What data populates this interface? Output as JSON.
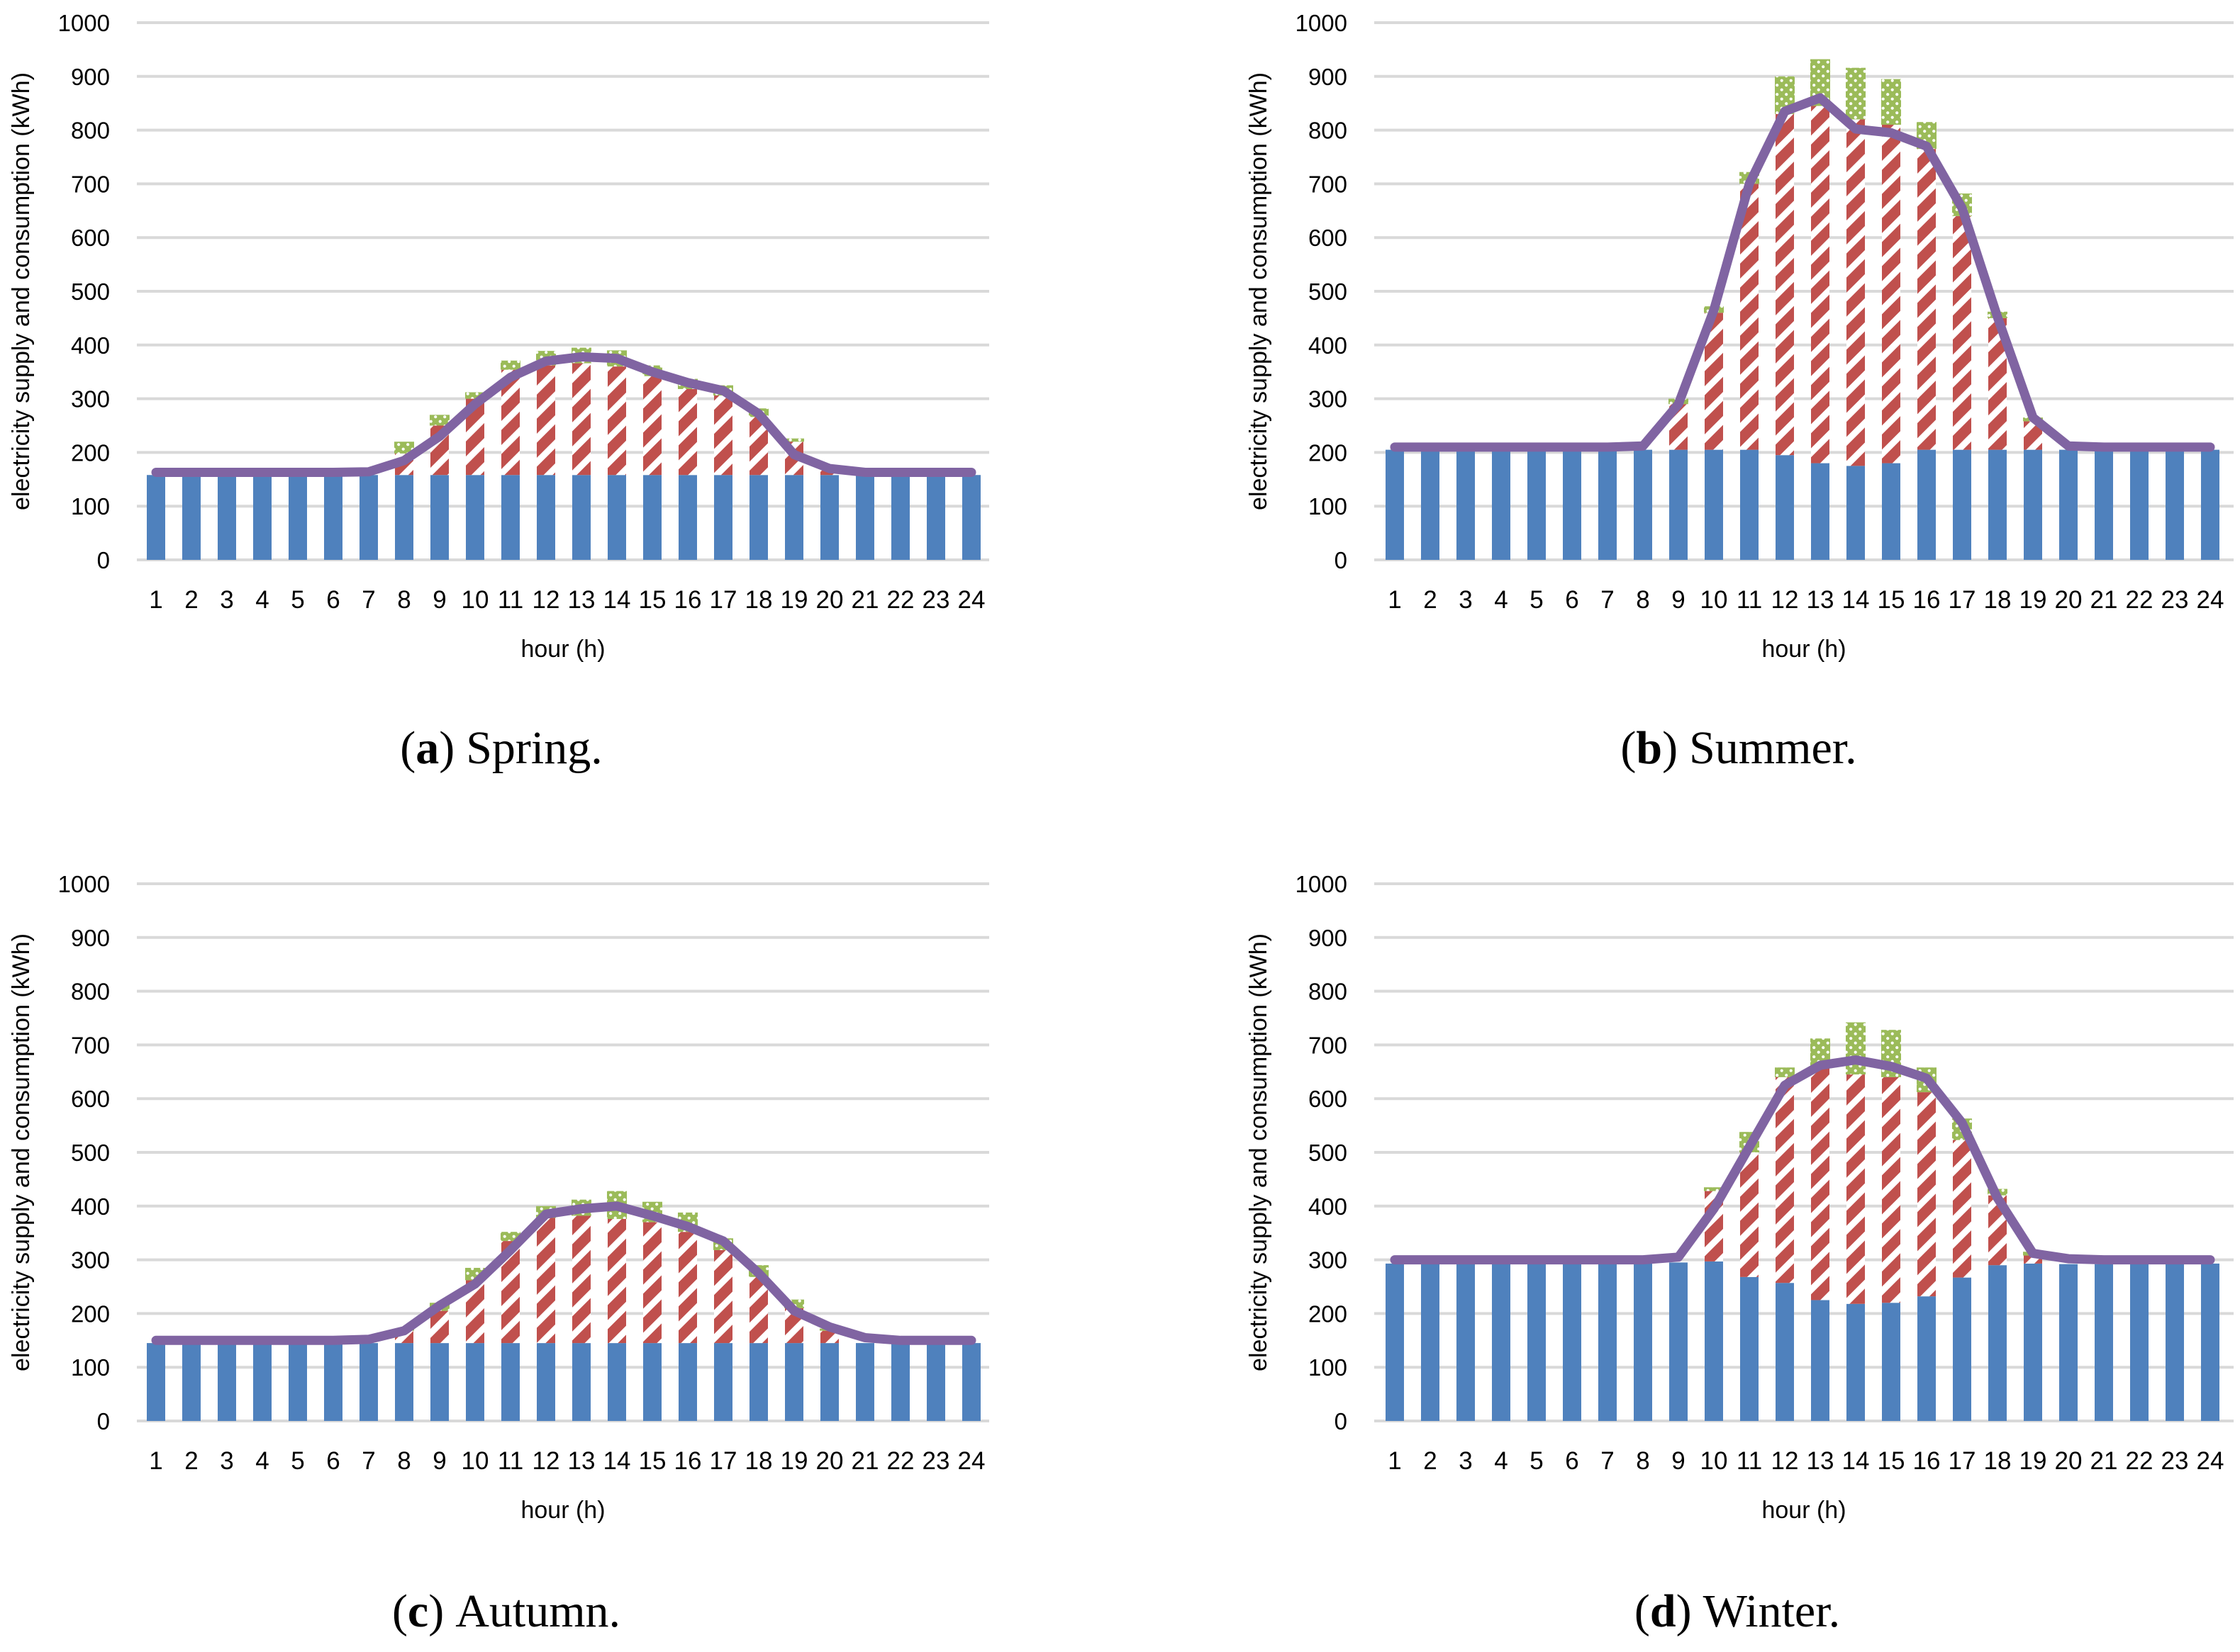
{
  "figure": {
    "captions": [
      {
        "open": "(",
        "letter": "a",
        "close": ")",
        "label": "Spring."
      },
      {
        "open": "(",
        "letter": "b",
        "close": ")",
        "label": "Summer."
      },
      {
        "open": "(",
        "letter": "c",
        "close": ")",
        "label": "Autumn."
      },
      {
        "open": "(",
        "letter": "d",
        "close": ")",
        "label": "Winter."
      }
    ]
  },
  "colors": {
    "blue_bar": "#4F81BD",
    "red_bar": "#C0504D",
    "green_bar": "#9BBB59",
    "purple_line": "#8064A2",
    "gridline": "#D9D9D9",
    "hatch_white": "#FFFFFF"
  },
  "chart_data": [
    {
      "id": "spring",
      "type": "bar",
      "caption": "(a) Spring.",
      "xlabel": "hour (h)",
      "ylabel": "electricity supply and consumption (kWh)",
      "ylim": [
        0,
        1000
      ],
      "grid": true,
      "legend": "none",
      "yticks": [
        0,
        100,
        200,
        300,
        400,
        500,
        600,
        700,
        800,
        900,
        1000
      ],
      "x": [
        1,
        2,
        3,
        4,
        5,
        6,
        7,
        8,
        9,
        10,
        11,
        12,
        13,
        14,
        15,
        16,
        17,
        18,
        19,
        20,
        21,
        22,
        23,
        24
      ],
      "series": [
        {
          "name": "blue-bars",
          "type": "bar",
          "stack": true,
          "color": "#4F81BD",
          "values": [
            158,
            158,
            158,
            158,
            158,
            158,
            158,
            158,
            158,
            158,
            158,
            158,
            158,
            158,
            158,
            158,
            158,
            158,
            158,
            158,
            158,
            158,
            158,
            158
          ]
        },
        {
          "name": "red-hatched-bars",
          "type": "bar",
          "stack": true,
          "color": "#C0504D",
          "pattern": "diagonal-hatch",
          "values": [
            0,
            0,
            0,
            0,
            0,
            0,
            0,
            40,
            92,
            142,
            196,
            204,
            208,
            202,
            184,
            160,
            148,
            108,
            62,
            18,
            0,
            0,
            0,
            0
          ]
        },
        {
          "name": "green-dotted-bars",
          "type": "bar",
          "stack": true,
          "color": "#9BBB59",
          "pattern": "white-dots",
          "values": [
            0,
            0,
            0,
            0,
            0,
            0,
            0,
            22,
            20,
            12,
            17,
            27,
            29,
            30,
            20,
            19,
            19,
            16,
            6,
            0,
            0,
            0,
            0,
            0
          ]
        },
        {
          "name": "purple-line",
          "type": "line",
          "color": "#8064A2",
          "values": [
            163,
            163,
            163,
            163,
            163,
            163,
            164,
            185,
            230,
            290,
            340,
            370,
            378,
            375,
            350,
            330,
            315,
            272,
            196,
            170,
            163,
            163,
            163,
            163
          ]
        }
      ]
    },
    {
      "id": "summer",
      "type": "bar",
      "caption": "(b) Summer.",
      "xlabel": "hour (h)",
      "ylabel": "electricity supply and consumption (kWh)",
      "ylim": [
        0,
        1000
      ],
      "grid": true,
      "legend": "none",
      "yticks": [
        0,
        100,
        200,
        300,
        400,
        500,
        600,
        700,
        800,
        900,
        1000
      ],
      "x": [
        1,
        2,
        3,
        4,
        5,
        6,
        7,
        8,
        9,
        10,
        11,
        12,
        13,
        14,
        15,
        16,
        17,
        18,
        19,
        20,
        21,
        22,
        23,
        24
      ],
      "series": [
        {
          "name": "blue-bars",
          "type": "bar",
          "stack": true,
          "color": "#4F81BD",
          "values": [
            205,
            205,
            205,
            205,
            205,
            205,
            205,
            205,
            205,
            205,
            205,
            195,
            180,
            175,
            180,
            205,
            205,
            205,
            205,
            205,
            205,
            205,
            205,
            205
          ]
        },
        {
          "name": "red-hatched-bars",
          "type": "bar",
          "stack": true,
          "color": "#C0504D",
          "pattern": "diagonal-hatch",
          "values": [
            0,
            0,
            0,
            0,
            0,
            0,
            0,
            0,
            85,
            255,
            495,
            635,
            665,
            645,
            630,
            560,
            435,
            245,
            53,
            0,
            0,
            0,
            0,
            0
          ]
        },
        {
          "name": "green-dotted-bars",
          "type": "bar",
          "stack": true,
          "color": "#9BBB59",
          "pattern": "white-dots",
          "values": [
            0,
            0,
            0,
            0,
            0,
            0,
            0,
            0,
            10,
            12,
            22,
            70,
            87,
            96,
            85,
            50,
            42,
            12,
            7,
            0,
            0,
            0,
            0,
            0
          ]
        },
        {
          "name": "purple-line",
          "type": "line",
          "color": "#8064A2",
          "values": [
            210,
            210,
            210,
            210,
            210,
            210,
            210,
            212,
            290,
            465,
            700,
            835,
            860,
            802,
            795,
            770,
            655,
            452,
            265,
            212,
            210,
            210,
            210,
            210
          ]
        }
      ]
    },
    {
      "id": "autumn",
      "type": "bar",
      "caption": "(c) Autumn.",
      "xlabel": "hour (h)",
      "ylabel": "electricity supply and consumption (kWh)",
      "ylim": [
        0,
        1000
      ],
      "grid": true,
      "legend": "none",
      "yticks": [
        0,
        100,
        200,
        300,
        400,
        500,
        600,
        700,
        800,
        900,
        1000
      ],
      "x": [
        1,
        2,
        3,
        4,
        5,
        6,
        7,
        8,
        9,
        10,
        11,
        12,
        13,
        14,
        15,
        16,
        17,
        18,
        19,
        20,
        21,
        22,
        23,
        24
      ],
      "series": [
        {
          "name": "blue-bars",
          "type": "bar",
          "stack": true,
          "color": "#4F81BD",
          "values": [
            145,
            145,
            145,
            145,
            145,
            145,
            145,
            145,
            145,
            145,
            145,
            145,
            145,
            145,
            145,
            145,
            145,
            145,
            145,
            145,
            145,
            145,
            145,
            145
          ]
        },
        {
          "name": "red-hatched-bars",
          "type": "bar",
          "stack": true,
          "color": "#C0504D",
          "pattern": "diagonal-hatch",
          "values": [
            0,
            0,
            0,
            0,
            0,
            0,
            0,
            23,
            60,
            117,
            190,
            233,
            237,
            231,
            225,
            207,
            173,
            123,
            65,
            23,
            0,
            0,
            0,
            0
          ]
        },
        {
          "name": "green-dotted-bars",
          "type": "bar",
          "stack": true,
          "color": "#9BBB59",
          "pattern": "white-dots",
          "values": [
            0,
            0,
            0,
            0,
            0,
            0,
            0,
            4,
            15,
            23,
            17,
            22,
            30,
            52,
            38,
            36,
            22,
            22,
            16,
            4,
            0,
            0,
            0,
            0
          ]
        },
        {
          "name": "purple-line",
          "type": "line",
          "color": "#8064A2",
          "values": [
            150,
            150,
            150,
            150,
            150,
            150,
            152,
            168,
            215,
            255,
            318,
            385,
            395,
            400,
            382,
            362,
            335,
            275,
            205,
            175,
            155,
            150,
            150,
            150
          ]
        }
      ]
    },
    {
      "id": "winter",
      "type": "bar",
      "caption": "(d) Winter.",
      "xlabel": "hour (h)",
      "ylabel": "electricity supply and consumption (kWh)",
      "ylim": [
        0,
        1000
      ],
      "grid": true,
      "legend": "none",
      "yticks": [
        0,
        100,
        200,
        300,
        400,
        500,
        600,
        700,
        800,
        900,
        1000
      ],
      "x": [
        1,
        2,
        3,
        4,
        5,
        6,
        7,
        8,
        9,
        10,
        11,
        12,
        13,
        14,
        15,
        16,
        17,
        18,
        19,
        20,
        21,
        22,
        23,
        24
      ],
      "series": [
        {
          "name": "blue-bars",
          "type": "bar",
          "stack": true,
          "color": "#4F81BD",
          "values": [
            293,
            293,
            292,
            292,
            292,
            292,
            292,
            293,
            295,
            297,
            268,
            257,
            225,
            218,
            220,
            232,
            267,
            290,
            293,
            292,
            292,
            292,
            292,
            293
          ]
        },
        {
          "name": "red-hatched-bars",
          "type": "bar",
          "stack": true,
          "color": "#C0504D",
          "pattern": "diagonal-hatch",
          "values": [
            0,
            0,
            0,
            0,
            0,
            0,
            0,
            0,
            0,
            131,
            232,
            383,
            433,
            427,
            420,
            380,
            256,
            130,
            15,
            0,
            0,
            0,
            0,
            0
          ]
        },
        {
          "name": "green-dotted-bars",
          "type": "bar",
          "stack": true,
          "color": "#9BBB59",
          "pattern": "white-dots",
          "values": [
            0,
            0,
            0,
            0,
            0,
            0,
            0,
            0,
            0,
            7,
            38,
            18,
            54,
            97,
            88,
            46,
            40,
            12,
            7,
            0,
            0,
            0,
            0,
            0
          ]
        },
        {
          "name": "purple-line",
          "type": "line",
          "color": "#8064A2",
          "values": [
            300,
            300,
            300,
            300,
            300,
            300,
            300,
            300,
            305,
            395,
            510,
            625,
            662,
            672,
            660,
            638,
            555,
            415,
            312,
            302,
            300,
            300,
            300,
            300
          ]
        }
      ]
    }
  ]
}
